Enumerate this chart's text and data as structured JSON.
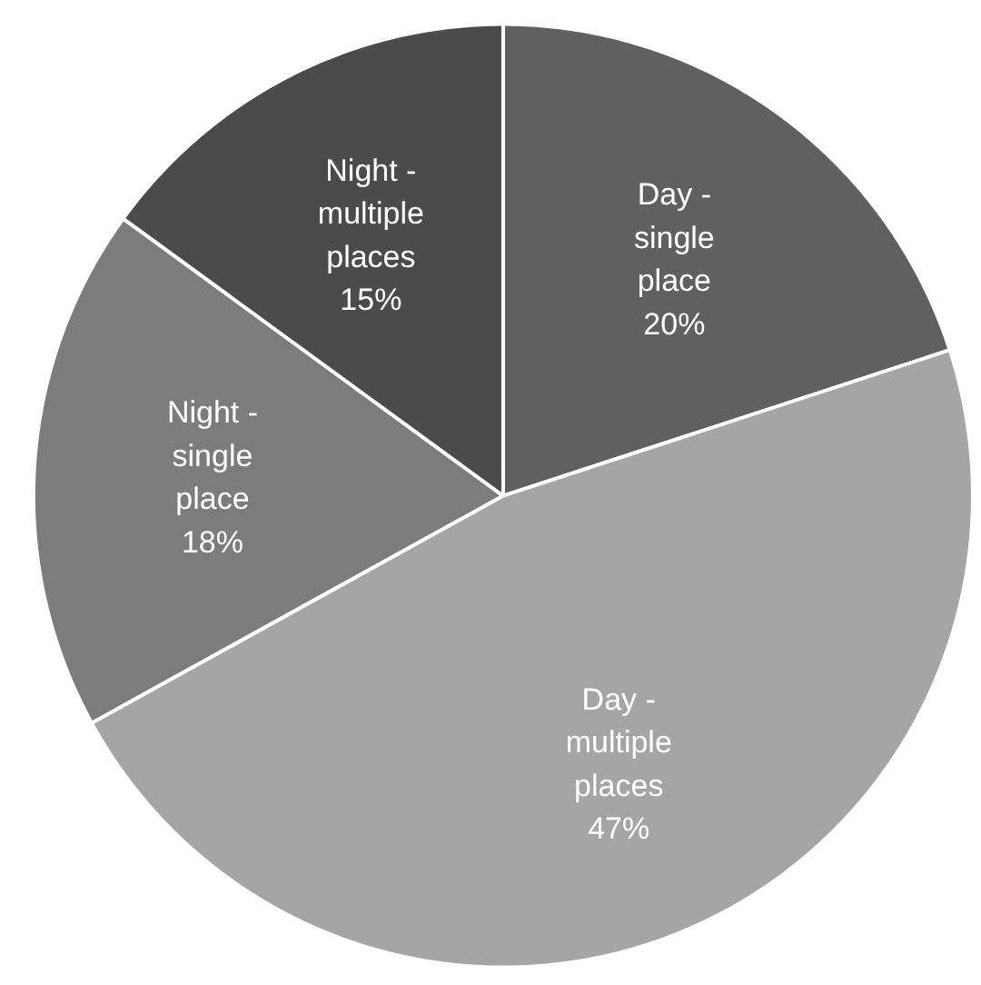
{
  "chart_data": {
    "type": "pie",
    "categories": [
      "Day - single place",
      "Day - multiple places",
      "Night - single place",
      "Night - multiple places"
    ],
    "values": [
      20,
      47,
      18,
      15
    ],
    "colors": [
      "#606060",
      "#a5a5a5",
      "#7c7c7c",
      "#4b4b4b"
    ],
    "value_labels": [
      "20%",
      "47%",
      "18%",
      "15%"
    ]
  }
}
